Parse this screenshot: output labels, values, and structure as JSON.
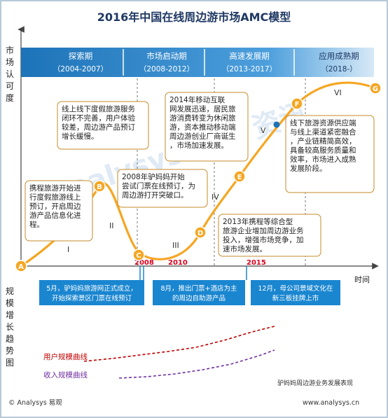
{
  "title": "2016年中国在线周边游市场AMC模型",
  "y_axis_label": "市场认可度",
  "lower_axis_label": "规模增长趋势图",
  "x_axis_label": "时间",
  "phases": [
    {
      "name": "探索期",
      "years": "（2004-2007）"
    },
    {
      "name": "市场启动期",
      "years": "（2008-2012）"
    },
    {
      "name": "高速发展期",
      "years": "（2013-2017）"
    },
    {
      "name": "应用成熟期",
      "years": "（2018-）"
    }
  ],
  "colors": {
    "title": "#1f3864",
    "phase_dark": "#1d73b8",
    "phase_light": "#6fb3e6",
    "curve": "#f5a623",
    "point_fill": "#f5a623",
    "user_curve": "#c00000",
    "revenue_curve": "#7030a0",
    "year_marker": "#d9001b",
    "event_box": "#1a86d0"
  },
  "points": [
    "A",
    "B",
    "C",
    "D",
    "E",
    "F",
    "G"
  ],
  "stage_numerals": [
    "I",
    "II",
    "III",
    "IV",
    "V",
    "VI"
  ],
  "year_markers": [
    "2008",
    "2010",
    "2015"
  ],
  "callouts": [
    "携程旅游开始进行度假旅游线上预订，开启周边游产品信息化进程。",
    "线上线下度假旅游服务闭环不完善，用户体验较差，周边游产品预订增长缓慢。",
    "2008年驴妈妈开始尝试门票在线预订，为周边游打开突破口。",
    "2014年移动互联网发展迅速，居民旅游消费转变为休闲旅游，资本推动移动端周边游创业厂商诞生，市场加速发展。",
    "2013年携程等综合型旅游企业增加周边游业务投入，增强市场竞争，加速市场发展。",
    "线下旅游资源供应端与线上渠道紧密融合，产业链精简高效，具备较高服务质量和效率，市场进入成熟发展阶段。"
  ],
  "events": [
    "5月，驴妈妈旅游网正式成立，开始探索景区门票在线预订",
    "8月，推出门票+酒店为主的周边自助游产品",
    "12月，母公司景域文化在新三板挂牌上市"
  ],
  "legend": {
    "user_curve": "用户规模曲线",
    "revenue_curve": "收入规模曲线",
    "source": "驴妈妈周边游业务发展表现"
  },
  "footer": {
    "left": "© Analysys 易观",
    "right": "www.analysys.cn"
  },
  "watermark": "Analysys 易观 资讯"
}
